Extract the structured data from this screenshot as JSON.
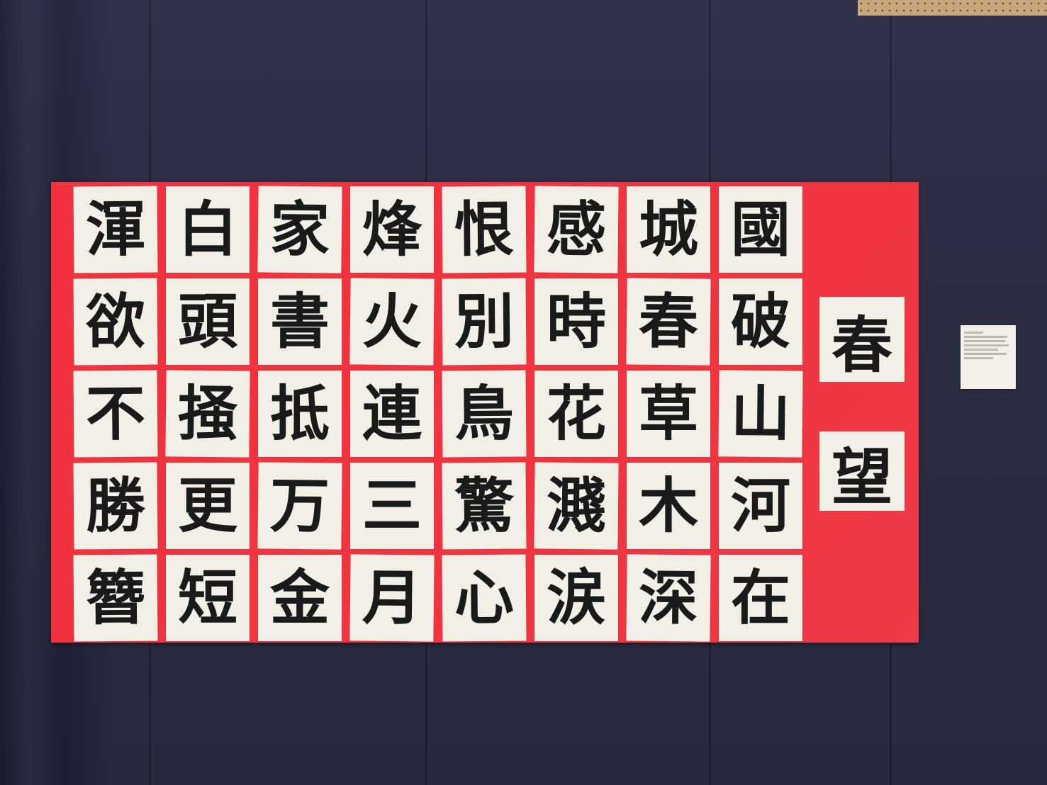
{
  "poem": {
    "title": [
      "春",
      "望"
    ],
    "columns": [
      [
        "國",
        "破",
        "山",
        "河",
        "在"
      ],
      [
        "城",
        "春",
        "草",
        "木",
        "深"
      ],
      [
        "感",
        "時",
        "花",
        "濺",
        "涙"
      ],
      [
        "恨",
        "別",
        "鳥",
        "驚",
        "心"
      ],
      [
        "烽",
        "火",
        "連",
        "三",
        "月"
      ],
      [
        "家",
        "書",
        "抵",
        "万",
        "金"
      ],
      [
        "白",
        "頭",
        "掻",
        "更",
        "短"
      ],
      [
        "渾",
        "欲",
        "不",
        "勝",
        "簪"
      ]
    ]
  },
  "colors": {
    "backdrop": "#23243a",
    "board": "#f2323f",
    "paper": "#f2efe6",
    "ink": "#1a1a1a"
  }
}
